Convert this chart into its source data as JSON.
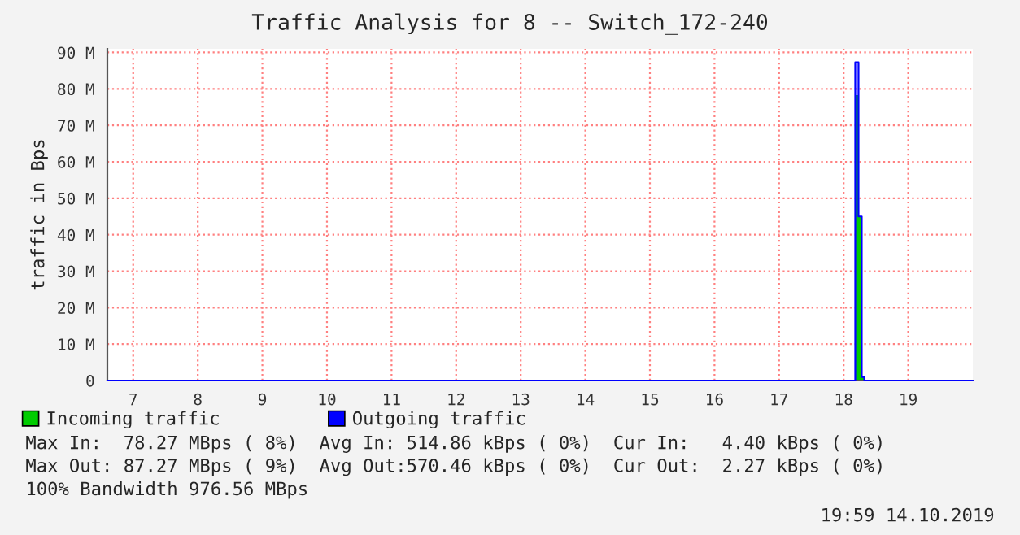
{
  "chart_data": {
    "type": "step",
    "title": "Traffic Analysis for 8 -- Switch_172-240",
    "ylabel": "traffic in Bps",
    "x": [
      6.6,
      18.18,
      18.23,
      18.28,
      18.32,
      20.0
    ],
    "series": [
      {
        "name": "Incoming traffic",
        "type": "area",
        "color": "#00cc00",
        "values": [
          0,
          0,
          78.27,
          45,
          1,
          0
        ]
      },
      {
        "name": "Outgoing traffic",
        "type": "step",
        "color": "#0000ff",
        "values": [
          0,
          0,
          87.27,
          45,
          1,
          0
        ]
      }
    ],
    "xlim": [
      6.6,
      20.0
    ],
    "xticks": [
      7,
      8,
      9,
      10,
      11,
      12,
      13,
      14,
      15,
      16,
      17,
      18,
      19
    ],
    "ylim": [
      0,
      91
    ],
    "yticks": [
      {
        "value": 0,
        "label": "0"
      },
      {
        "value": 10,
        "label": "10 M"
      },
      {
        "value": 20,
        "label": "20 M"
      },
      {
        "value": 30,
        "label": "30 M"
      },
      {
        "value": 40,
        "label": "40 M"
      },
      {
        "value": 50,
        "label": "50 M"
      },
      {
        "value": 60,
        "label": "60 M"
      },
      {
        "value": 70,
        "label": "70 M"
      },
      {
        "value": 80,
        "label": "80 M"
      },
      {
        "value": 90,
        "label": "90 M"
      }
    ],
    "grid": true,
    "legend": "bottom",
    "annotations": [
      "Max In:  78.27 MBps ( 8%)  Avg In: 514.86 kBps ( 0%)  Cur In:   4.40 kBps ( 0%)",
      "Max Out: 87.27 MBps ( 9%)  Avg Out:570.46 kBps ( 0%)  Cur Out:  2.27 kBps ( 0%)",
      "100% Bandwidth 976.56 MBps",
      "19:59 14.10.2019"
    ]
  }
}
